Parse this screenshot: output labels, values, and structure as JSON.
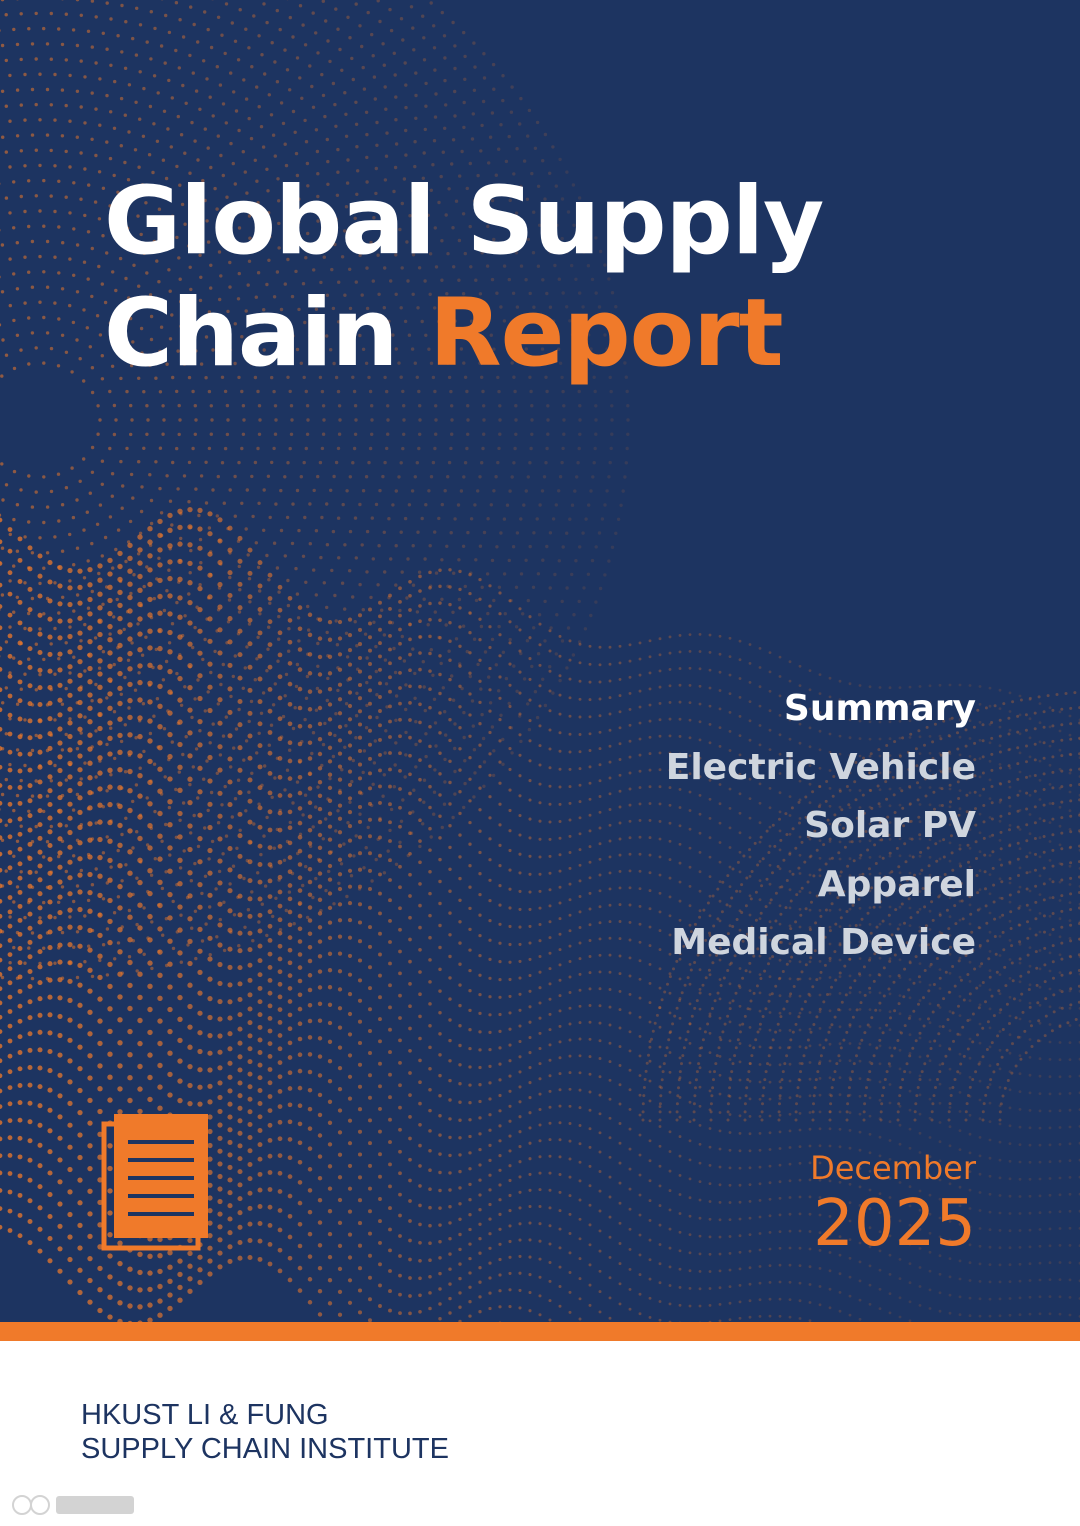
{
  "cover": {
    "title_line1": "Global Supply",
    "title_line2_white": "Chain",
    "title_line2_accent": "Report",
    "topics": [
      "Summary",
      "Electric Vehicle",
      "Solar PV",
      "Apparel",
      "Medical Device"
    ],
    "date_month": "December",
    "date_year": "2025",
    "icon": "document-icon",
    "colors": {
      "background": "#1d3461",
      "accent": "#f07a2a",
      "topic_text": "#cfd5de"
    }
  },
  "footer": {
    "institute_line1": "HKUST LI & FUNG",
    "institute_line2": "SUPPLY CHAIN INSTITUTE"
  }
}
